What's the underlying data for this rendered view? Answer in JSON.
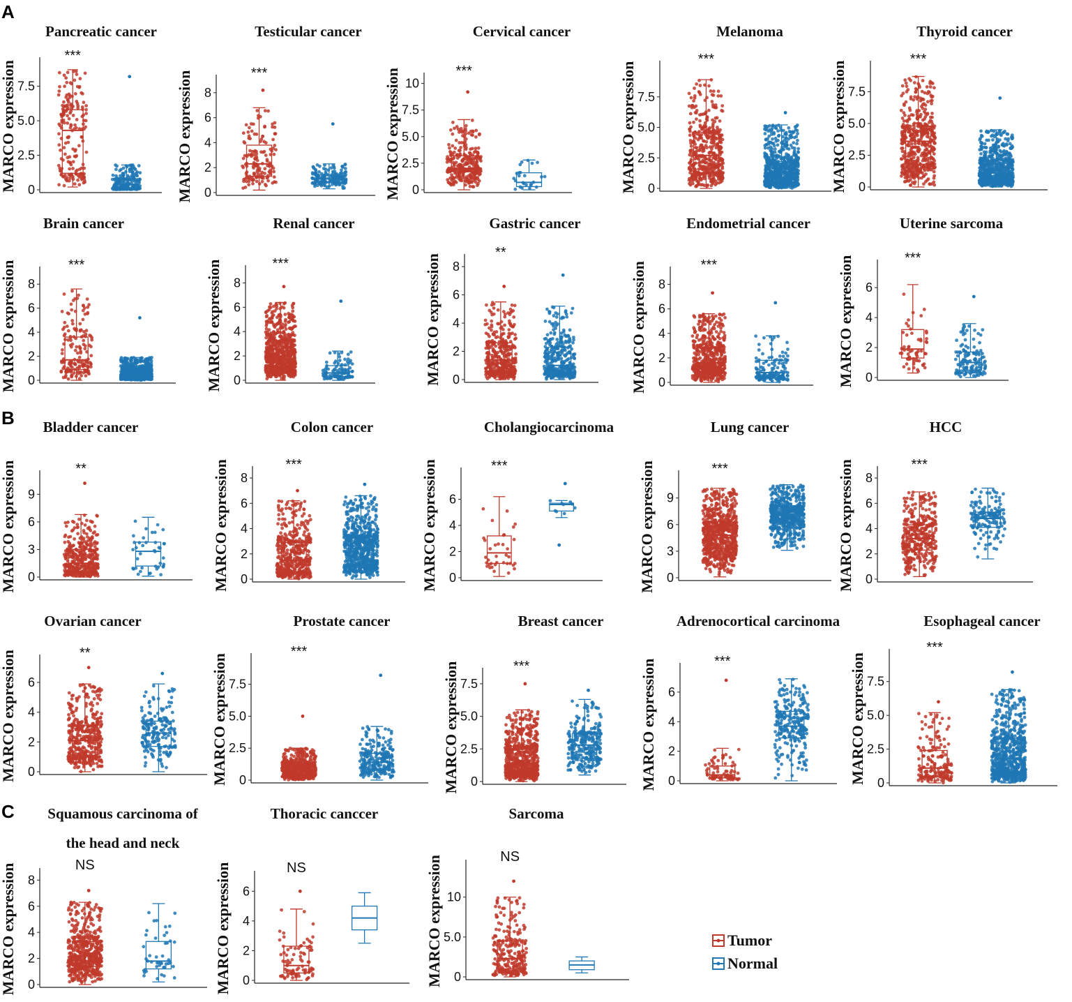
{
  "figure": {
    "panel_labels": [
      "A",
      "B",
      "C"
    ],
    "y_axis_label": "MARCO expression",
    "legend": [
      {
        "label": "Tumor",
        "color": "#c0392b"
      },
      {
        "label": "Normal",
        "color": "#1f77b4"
      }
    ]
  },
  "chart_data": [
    {
      "type": "box",
      "title": "Pancreatic cancer",
      "significance": "***",
      "ylim": [
        0,
        9.2
      ],
      "ticks": [
        0,
        2.5,
        5.0,
        7.5
      ],
      "tick_labels": [
        "0",
        "2.5",
        "5.0",
        "7.5"
      ],
      "series": [
        {
          "name": "Tumor",
          "min": 0.2,
          "q1": 1.2,
          "median": 4.3,
          "q3": 5.8,
          "max": 8.7,
          "n": 180
        },
        {
          "name": "Normal",
          "min": 0,
          "q1": 0.1,
          "median": 0.4,
          "q3": 0.8,
          "max": 1.8,
          "n": 200,
          "outlier_max": 8.2
        }
      ]
    },
    {
      "type": "box",
      "title": "Testicular cancer",
      "significance": "***",
      "ylim": [
        0,
        9
      ],
      "ticks": [
        0,
        2,
        4,
        6,
        8
      ],
      "tick_labels": [
        "0",
        "2",
        "4",
        "6",
        "8"
      ],
      "series": [
        {
          "name": "Tumor",
          "min": 0.2,
          "q1": 1.3,
          "median": 2.3,
          "q3": 3.8,
          "max": 6.8,
          "n": 150,
          "outlier_max": 8.2
        },
        {
          "name": "Normal",
          "min": 0.3,
          "q1": 0.8,
          "median": 1.1,
          "q3": 1.4,
          "max": 2.3,
          "n": 170,
          "outlier_max": 5.5
        }
      ]
    },
    {
      "type": "box",
      "title": "Cervical cancer",
      "significance": "***",
      "ylim": [
        0,
        10.5
      ],
      "ticks": [
        0,
        2.5,
        5.0,
        7.5,
        10
      ],
      "tick_labels": [
        "0",
        "2.5",
        "5.0",
        "7.5",
        "10"
      ],
      "series": [
        {
          "name": "Tumor",
          "min": 0,
          "q1": 1.7,
          "median": 2.0,
          "q3": 3.2,
          "max": 6.6,
          "n": 300,
          "outlier_max": 9.2
        },
        {
          "name": "Normal",
          "min": 0,
          "q1": 0.3,
          "median": 0.7,
          "q3": 1.6,
          "max": 2.8,
          "n": 25
        }
      ]
    },
    {
      "type": "box",
      "title": "Melanoma",
      "significance": "***",
      "ylim": [
        0,
        10
      ],
      "ticks": [
        0,
        2.5,
        5.0,
        7.5
      ],
      "tick_labels": [
        "0",
        "2.5",
        "5.0",
        "7.5"
      ],
      "series": [
        {
          "name": "Tumor",
          "min": 0,
          "q1": 1.3,
          "median": 2.7,
          "q3": 4.6,
          "max": 8.9,
          "n": 470
        },
        {
          "name": "Normal",
          "min": 0,
          "q1": 0.5,
          "median": 1.3,
          "q3": 2.2,
          "max": 5.2,
          "n": 1800,
          "outlier_max": 6.2
        }
      ]
    },
    {
      "type": "box",
      "title": "Thyroid cancer",
      "significance": "***",
      "ylim": [
        0,
        9.5
      ],
      "ticks": [
        0,
        2.5,
        5.0,
        7.5
      ],
      "tick_labels": [
        "0",
        "2.5",
        "5.0",
        "7.5"
      ],
      "series": [
        {
          "name": "Tumor",
          "min": 0,
          "q1": 1.8,
          "median": 3.6,
          "q3": 4.8,
          "max": 8.7,
          "n": 510
        },
        {
          "name": "Normal",
          "min": 0,
          "q1": 0.5,
          "median": 1.1,
          "q3": 2.1,
          "max": 4.5,
          "n": 700,
          "outlier_max": 7.0
        }
      ]
    },
    {
      "type": "box",
      "title": "Brain cancer",
      "significance": "***",
      "ylim": [
        0,
        9
      ],
      "ticks": [
        0,
        2,
        4,
        6,
        8
      ],
      "tick_labels": [
        "0",
        "2",
        "4",
        "6",
        "8"
      ],
      "series": [
        {
          "name": "Tumor",
          "min": 0,
          "q1": 0.9,
          "median": 1.7,
          "q3": 3.6,
          "max": 7.6,
          "n": 170
        },
        {
          "name": "Normal",
          "min": 0,
          "q1": 0.2,
          "median": 0.4,
          "q3": 0.9,
          "max": 1.9,
          "n": 1200,
          "outlier_max": 5.2
        }
      ]
    },
    {
      "type": "box",
      "title": "Renal cancer",
      "significance": "***",
      "ylim": [
        0,
        9
      ],
      "ticks": [
        0,
        2,
        4,
        6,
        8
      ],
      "tick_labels": [
        "0",
        "2",
        "4",
        "6",
        "8"
      ],
      "series": [
        {
          "name": "Tumor",
          "min": 0,
          "q1": 1.1,
          "median": 2.0,
          "q3": 3.2,
          "max": 6.4,
          "n": 900,
          "outlier_max": 7.7
        },
        {
          "name": "Normal",
          "min": 0,
          "q1": 0.3,
          "median": 0.6,
          "q3": 1.2,
          "max": 2.4,
          "n": 100,
          "outlier_max": 6.5
        }
      ]
    },
    {
      "type": "box",
      "title": "Gastric cancer",
      "significance": "**",
      "ylim": [
        0,
        8.5
      ],
      "ticks": [
        0,
        2,
        4,
        6,
        8
      ],
      "tick_labels": [
        "0",
        "2",
        "4",
        "6",
        "8"
      ],
      "series": [
        {
          "name": "Tumor",
          "min": 0,
          "q1": 0.6,
          "median": 1.4,
          "q3": 2.6,
          "max": 5.5,
          "n": 400,
          "outlier_max": 6.6
        },
        {
          "name": "Normal",
          "min": 0,
          "q1": 0.5,
          "median": 1.0,
          "q3": 2.3,
          "max": 5.2,
          "n": 360,
          "outlier_max": 7.4
        }
      ]
    },
    {
      "type": "box",
      "title": "Endometrial cancer",
      "significance": "***",
      "ylim": [
        0,
        9
      ],
      "ticks": [
        0,
        2,
        4,
        6,
        8
      ],
      "tick_labels": [
        "0",
        "2",
        "4",
        "6",
        "8"
      ],
      "series": [
        {
          "name": "Tumor",
          "min": 0,
          "q1": 0.9,
          "median": 1.6,
          "q3": 2.8,
          "max": 5.6,
          "n": 550,
          "outlier_max": 7.3
        },
        {
          "name": "Normal",
          "min": 0,
          "q1": 0.4,
          "median": 0.8,
          "q3": 1.8,
          "max": 3.8,
          "n": 150,
          "outlier_max": 6.5
        }
      ]
    },
    {
      "type": "box",
      "title": "Uterine sarcoma",
      "significance": "***",
      "ylim": [
        0,
        7.5
      ],
      "ticks": [
        0,
        2,
        4,
        6
      ],
      "tick_labels": [
        "0",
        "2",
        "4",
        "6"
      ],
      "series": [
        {
          "name": "Tumor",
          "min": 0.3,
          "q1": 1.3,
          "median": 1.9,
          "q3": 3.2,
          "max": 6.2,
          "n": 60
        },
        {
          "name": "Normal",
          "min": 0,
          "q1": 0.5,
          "median": 1.0,
          "q3": 1.7,
          "max": 3.6,
          "n": 130,
          "outlier_max": 5.4
        }
      ]
    },
    {
      "type": "box",
      "title": "Bladder cancer",
      "significance": "**",
      "ylim": [
        0,
        11
      ],
      "ticks": [
        0,
        3,
        6,
        9
      ],
      "tick_labels": [
        "0",
        "3",
        "6",
        "9"
      ],
      "series": [
        {
          "name": "Tumor",
          "min": 0,
          "q1": 0.6,
          "median": 1.5,
          "q3": 3.0,
          "max": 6.8,
          "n": 410,
          "outlier_max": 10.2
        },
        {
          "name": "Normal",
          "min": 0.1,
          "q1": 1.2,
          "median": 2.8,
          "q3": 3.8,
          "max": 6.5,
          "n": 40
        }
      ]
    },
    {
      "type": "box",
      "title": "Colon cancer",
      "significance": "***",
      "ylim": [
        0,
        8.5
      ],
      "ticks": [
        0,
        2,
        4,
        6,
        8
      ],
      "tick_labels": [
        "0",
        "2",
        "4",
        "6",
        "8"
      ],
      "series": [
        {
          "name": "Tumor",
          "min": 0,
          "q1": 0.6,
          "median": 1.5,
          "q3": 2.9,
          "max": 6.2,
          "n": 460,
          "outlier_max": 7.0
        },
        {
          "name": "Normal",
          "min": 0,
          "q1": 1.2,
          "median": 2.4,
          "q3": 3.4,
          "max": 6.6,
          "n": 700,
          "outlier_max": 7.5
        }
      ]
    },
    {
      "type": "box",
      "title": "Cholangiocarcinoma",
      "significance": "***",
      "ylim": [
        0,
        8
      ],
      "ticks": [
        0,
        2,
        4,
        6
      ],
      "tick_labels": [
        "0",
        "2",
        "4",
        "6"
      ],
      "series": [
        {
          "name": "Tumor",
          "min": 0.1,
          "q1": 1.1,
          "median": 1.9,
          "q3": 3.2,
          "max": 6.2,
          "n": 36
        },
        {
          "name": "Normal",
          "min": 4.6,
          "q1": 5.1,
          "median": 5.6,
          "q3": 5.7,
          "max": 5.9,
          "n": 9,
          "outlier_max": 7.2,
          "outlier_min": 2.5
        }
      ]
    },
    {
      "type": "box",
      "title": "Lung cancer",
      "significance": "***",
      "ylim": [
        0,
        11.5
      ],
      "ticks": [
        0,
        3,
        6,
        9
      ],
      "tick_labels": [
        "0",
        "3",
        "6",
        "9"
      ],
      "series": [
        {
          "name": "Tumor",
          "min": 0.1,
          "q1": 3.3,
          "median": 4.8,
          "q3": 6.3,
          "max": 10.1,
          "n": 1000
        },
        {
          "name": "Normal",
          "min": 3.1,
          "q1": 6.3,
          "median": 7.2,
          "q3": 8.0,
          "max": 10.5,
          "n": 580
        }
      ]
    },
    {
      "type": "box",
      "title": "HCC",
      "significance": "***",
      "ylim": [
        0,
        8.5
      ],
      "ticks": [
        0,
        2,
        4,
        6,
        8
      ],
      "tick_labels": [
        "0",
        "2",
        "4",
        "6",
        "8"
      ],
      "series": [
        {
          "name": "Tumor",
          "min": 0.2,
          "q1": 2.3,
          "median": 3.2,
          "q3": 4.3,
          "max": 6.9,
          "n": 370
        },
        {
          "name": "Normal",
          "min": 1.6,
          "q1": 4.1,
          "median": 4.8,
          "q3": 5.3,
          "max": 7.2,
          "n": 160
        }
      ]
    },
    {
      "type": "box",
      "title": "Ovarian cancer",
      "significance": "**",
      "ylim": [
        0,
        7.5
      ],
      "ticks": [
        0,
        2,
        4,
        6
      ],
      "tick_labels": [
        "0",
        "2",
        "4",
        "6"
      ],
      "series": [
        {
          "name": "Tumor",
          "min": 0,
          "q1": 1.1,
          "median": 2.1,
          "q3": 3.1,
          "max": 5.9,
          "n": 420,
          "outlier_max": 7.0
        },
        {
          "name": "Normal",
          "min": 0,
          "q1": 1.7,
          "median": 2.6,
          "q3": 3.4,
          "max": 5.9,
          "n": 180,
          "outlier_max": 6.6
        }
      ]
    },
    {
      "type": "box",
      "title": "Prostate cancer",
      "significance": "***",
      "ylim": [
        0,
        9.5
      ],
      "ticks": [
        0,
        2.5,
        5.0,
        7.5
      ],
      "tick_labels": [
        "0",
        "2.5",
        "5.0",
        "7.5"
      ],
      "series": [
        {
          "name": "Tumor",
          "min": 0,
          "q1": 0.4,
          "median": 0.8,
          "q3": 1.3,
          "max": 2.5,
          "n": 500,
          "outlier_max": 5.0
        },
        {
          "name": "Normal",
          "min": 0,
          "q1": 0.8,
          "median": 1.4,
          "q3": 2.1,
          "max": 4.2,
          "n": 250,
          "outlier_max": 8.2
        }
      ]
    },
    {
      "type": "box",
      "title": "Breast cancer",
      "significance": "***",
      "ylim": [
        0,
        8.3
      ],
      "ticks": [
        0,
        2.5,
        5.0,
        7.5
      ],
      "tick_labels": [
        "0",
        "2.5",
        "5.0",
        "7.5"
      ],
      "series": [
        {
          "name": "Tumor",
          "min": 0,
          "q1": 0.7,
          "median": 1.4,
          "q3": 2.7,
          "max": 5.5,
          "n": 1100,
          "outlier_max": 7.5
        },
        {
          "name": "Normal",
          "min": 0.5,
          "q1": 1.8,
          "median": 2.8,
          "q3": 3.7,
          "max": 6.3,
          "n": 290,
          "outlier_max": 7.0
        }
      ]
    },
    {
      "type": "box",
      "title": "Adrenocortical carcinoma",
      "significance": "***",
      "ylim": [
        0,
        7.6
      ],
      "ticks": [
        0,
        2,
        4,
        6
      ],
      "tick_labels": [
        "0",
        "2",
        "4",
        "6"
      ],
      "series": [
        {
          "name": "Tumor",
          "min": 0,
          "q1": 0.2,
          "median": 0.4,
          "q3": 1.0,
          "max": 2.2,
          "n": 77,
          "outlier_max": 6.8
        },
        {
          "name": "Normal",
          "min": 0,
          "q1": 2.9,
          "median": 3.7,
          "q3": 4.7,
          "max": 6.9,
          "n": 250
        }
      ]
    },
    {
      "type": "box",
      "title": "Esophageal cancer",
      "significance": "***",
      "ylim": [
        0,
        9.5
      ],
      "ticks": [
        0,
        2.5,
        5.0,
        7.5
      ],
      "tick_labels": [
        "0",
        "2.5",
        "5.0",
        "7.5"
      ],
      "series": [
        {
          "name": "Tumor",
          "min": 0,
          "q1": 0.5,
          "median": 1.1,
          "q3": 2.4,
          "max": 5.2,
          "n": 180,
          "outlier_max": 6.0
        },
        {
          "name": "Normal",
          "min": 0,
          "q1": 0.8,
          "median": 1.8,
          "q3": 3.3,
          "max": 6.9,
          "n": 1400,
          "outlier_max": 8.2
        }
      ]
    },
    {
      "type": "box",
      "title": "Squamous carcinoma of the head and neck",
      "title_lines": [
        "Squamous carcinoma of",
        "the head and neck"
      ],
      "significance": "NS",
      "ylim": [
        0,
        8.5
      ],
      "ticks": [
        0,
        2,
        4,
        6,
        8
      ],
      "tick_labels": [
        "0",
        "2",
        "4",
        "6",
        "8"
      ],
      "series": [
        {
          "name": "Tumor",
          "min": 0,
          "q1": 1.4,
          "median": 2.2,
          "q3": 3.3,
          "max": 6.3,
          "n": 520,
          "outlier_max": 7.2
        },
        {
          "name": "Normal",
          "min": 0.2,
          "q1": 1.2,
          "median": 1.8,
          "q3": 3.3,
          "max": 6.2,
          "n": 44
        }
      ]
    },
    {
      "type": "box",
      "title": "Thoracic canccer",
      "significance": "NS",
      "ylim": [
        0,
        7
      ],
      "ticks": [
        0,
        2,
        4,
        6
      ],
      "tick_labels": [
        "0",
        "2",
        "4",
        "6"
      ],
      "series": [
        {
          "name": "Tumor",
          "min": 0,
          "q1": 0.5,
          "median": 1.0,
          "q3": 2.3,
          "max": 4.8,
          "n": 87,
          "outlier_max": 6.0
        },
        {
          "name": "Normal",
          "min": 2.5,
          "q1": 3.4,
          "median": 4.2,
          "q3": 5.0,
          "max": 5.9,
          "n": 2,
          "points": false
        }
      ]
    },
    {
      "type": "box",
      "title": "Sarcoma",
      "significance": "NS",
      "ylim": [
        0,
        14
      ],
      "ticks": [
        0,
        5.0,
        10
      ],
      "tick_labels": [
        "0",
        "5.0",
        "10"
      ],
      "series": [
        {
          "name": "Tumor",
          "min": 0,
          "q1": 1.0,
          "median": 2.3,
          "q3": 4.5,
          "max": 10.0,
          "n": 260,
          "outlier_max": 12.0
        },
        {
          "name": "Normal",
          "min": 0.5,
          "q1": 0.9,
          "median": 1.5,
          "q3": 2.0,
          "max": 2.5,
          "n": 2,
          "points": false
        }
      ]
    }
  ]
}
